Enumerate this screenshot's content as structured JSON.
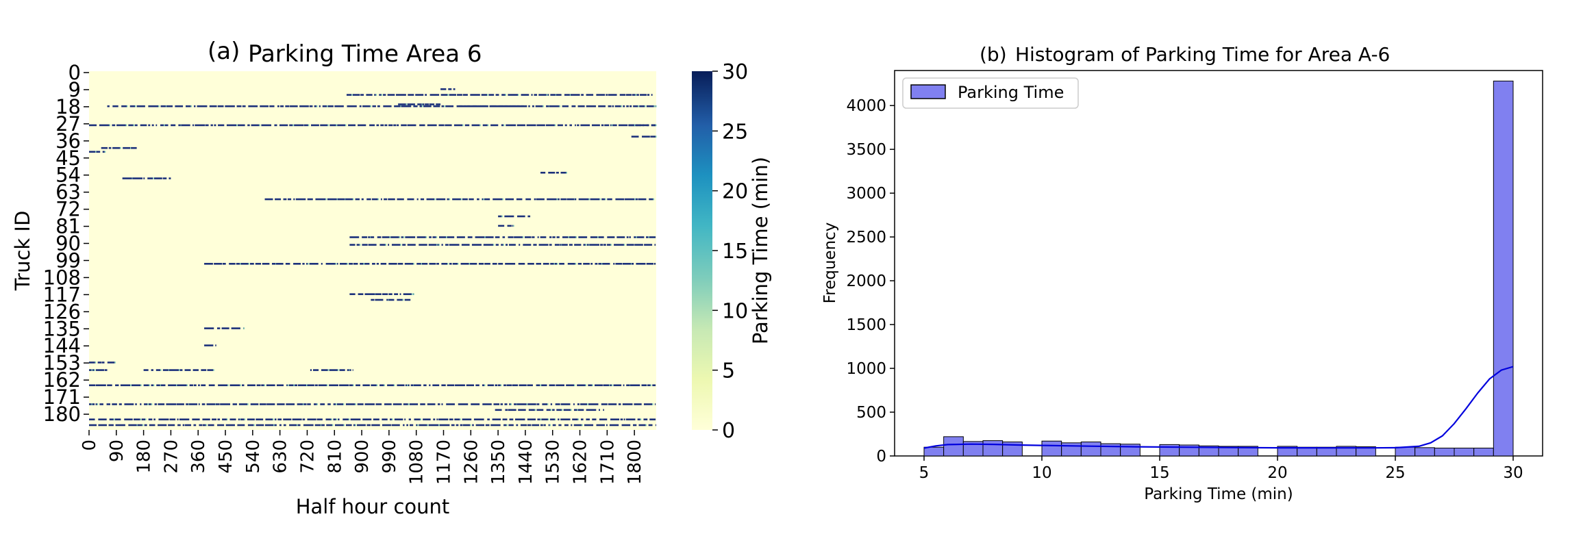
{
  "figure": {
    "panel_a_label": "(a)",
    "panel_b_label": "(b)"
  },
  "chart_data": [
    {
      "type": "heatmap",
      "title": "Parking Time Area 6",
      "xlabel": "Half hour count",
      "ylabel": "Truck ID",
      "x_tick_labels": [
        "0",
        "90",
        "180",
        "270",
        "360",
        "450",
        "540",
        "630",
        "720",
        "810",
        "900",
        "990",
        "1080",
        "1170",
        "1260",
        "1350",
        "1440",
        "1530",
        "1620",
        "1710",
        "1800"
      ],
      "y_tick_labels": [
        "0",
        "9",
        "18",
        "27",
        "36",
        "45",
        "54",
        "63",
        "72",
        "81",
        "90",
        "99",
        "108",
        "117",
        "126",
        "135",
        "144",
        "153",
        "162",
        "171",
        "180"
      ],
      "xlim": [
        0,
        1872
      ],
      "ylim": [
        0,
        189
      ],
      "colorbar": {
        "label": "Parking Time (min)",
        "range": [
          0,
          30
        ],
        "ticks": [
          "0",
          "5",
          "10",
          "15",
          "20",
          "25",
          "30"
        ],
        "colormap": "YlGnBu",
        "low_color": "#ffffd9",
        "high_color": "#081d58"
      },
      "approximate_parking_segments": [
        {
          "row": 9,
          "start": 1160,
          "end": 1210,
          "value": 30
        },
        {
          "row": 12,
          "start": 850,
          "end": 1860,
          "value": 30
        },
        {
          "row": 17,
          "start": 1020,
          "end": 1160,
          "value": 30
        },
        {
          "row": 18,
          "start": 60,
          "end": 1870,
          "value": 30
        },
        {
          "row": 18,
          "start": 1220,
          "end": 1460,
          "value": 30
        },
        {
          "row": 28,
          "start": 0,
          "end": 1870,
          "value": 30
        },
        {
          "row": 28,
          "start": 1780,
          "end": 1870,
          "value": 30
        },
        {
          "row": 34,
          "start": 1790,
          "end": 1870,
          "value": 30
        },
        {
          "row": 40,
          "start": 40,
          "end": 160,
          "value": 30
        },
        {
          "row": 42,
          "start": 0,
          "end": 60,
          "value": 30
        },
        {
          "row": 53,
          "start": 1490,
          "end": 1580,
          "value": 30
        },
        {
          "row": 56,
          "start": 110,
          "end": 270,
          "value": 30
        },
        {
          "row": 67,
          "start": 580,
          "end": 1870,
          "value": 30
        },
        {
          "row": 76,
          "start": 1350,
          "end": 1460,
          "value": 30
        },
        {
          "row": 81,
          "start": 1350,
          "end": 1400,
          "value": 30
        },
        {
          "row": 87,
          "start": 860,
          "end": 1870,
          "value": 30
        },
        {
          "row": 91,
          "start": 860,
          "end": 1870,
          "value": 30
        },
        {
          "row": 101,
          "start": 380,
          "end": 1870,
          "value": 30
        },
        {
          "row": 117,
          "start": 860,
          "end": 1070,
          "value": 30
        },
        {
          "row": 120,
          "start": 930,
          "end": 1070,
          "value": 30
        },
        {
          "row": 135,
          "start": 380,
          "end": 510,
          "value": 30
        },
        {
          "row": 144,
          "start": 380,
          "end": 420,
          "value": 30
        },
        {
          "row": 153,
          "start": 0,
          "end": 90,
          "value": 30
        },
        {
          "row": 157,
          "start": 0,
          "end": 60,
          "value": 30
        },
        {
          "row": 157,
          "start": 180,
          "end": 410,
          "value": 30
        },
        {
          "row": 157,
          "start": 730,
          "end": 870,
          "value": 30
        },
        {
          "row": 165,
          "start": 0,
          "end": 1870,
          "value": 30
        },
        {
          "row": 175,
          "start": 0,
          "end": 1870,
          "value": 30
        },
        {
          "row": 178,
          "start": 1340,
          "end": 1700,
          "value": 30
        },
        {
          "row": 183,
          "start": 0,
          "end": 1870,
          "value": 30
        },
        {
          "row": 186,
          "start": 0,
          "end": 1870,
          "value": 30
        }
      ]
    },
    {
      "type": "bar",
      "title": "Histogram of Parking Time for Area A-6",
      "xlabel": "Parking Time (min)",
      "ylabel": "Frequency",
      "xlim": [
        3.75,
        31.25
      ],
      "ylim": [
        0,
        4400
      ],
      "x_ticks": [
        "5",
        "10",
        "15",
        "20",
        "25",
        "30"
      ],
      "y_ticks": [
        "0",
        "500",
        "1000",
        "1500",
        "2000",
        "2500",
        "3000",
        "3500",
        "4000"
      ],
      "legend": {
        "position": "upper-left",
        "entries": [
          "Parking Time"
        ]
      },
      "bar_color": "#8080f0",
      "kde_color": "#0000dd",
      "bins": {
        "edges": [
          5.0,
          5.833,
          6.667,
          7.5,
          8.333,
          9.167,
          10.0,
          10.833,
          11.667,
          12.5,
          13.333,
          14.167,
          15.0,
          15.833,
          16.667,
          17.5,
          18.333,
          19.167,
          20.0,
          20.833,
          21.667,
          22.5,
          23.333,
          24.167,
          25.0,
          25.833,
          26.667,
          27.5,
          28.333,
          29.167,
          30.0
        ],
        "values": [
          100,
          220,
          165,
          175,
          160,
          0,
          170,
          150,
          160,
          140,
          135,
          0,
          130,
          125,
          115,
          110,
          110,
          0,
          110,
          100,
          100,
          110,
          105,
          0,
          100,
          95,
          90,
          90,
          90,
          4280
        ]
      },
      "kde": {
        "x": [
          5.0,
          5.5,
          6.0,
          7.0,
          8.0,
          9.0,
          10.0,
          12.0,
          14.0,
          16.0,
          18.0,
          20.0,
          22.0,
          24.0,
          25.0,
          26.0,
          26.5,
          27.0,
          27.5,
          28.0,
          28.5,
          29.0,
          29.5,
          30.0
        ],
        "y": [
          90,
          115,
          130,
          135,
          132,
          125,
          120,
          112,
          105,
          100,
          96,
          93,
          92,
          92,
          94,
          110,
          150,
          230,
          370,
          540,
          720,
          880,
          980,
          1020
        ]
      }
    }
  ]
}
